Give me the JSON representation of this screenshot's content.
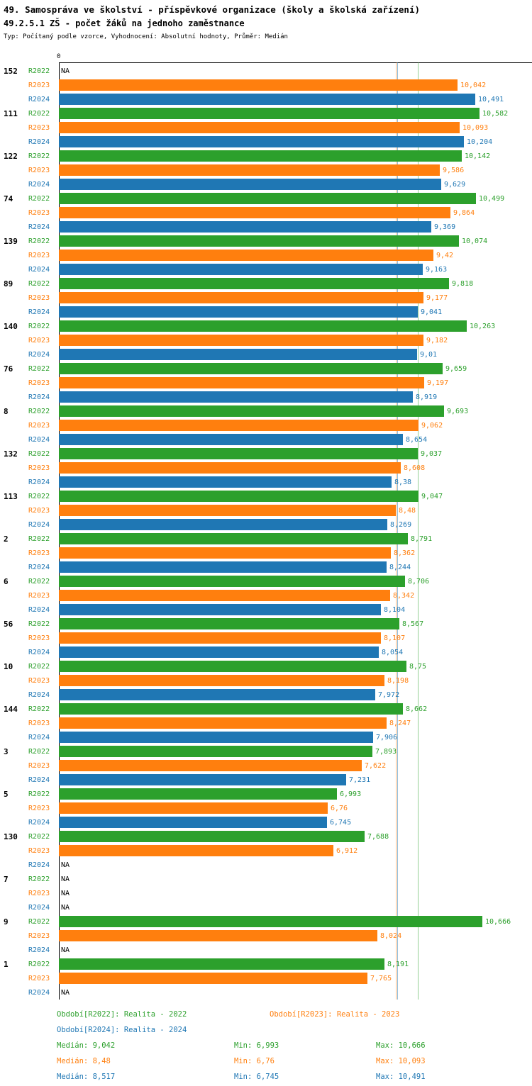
{
  "header": {
    "title": "49. Samospráva ve školství - příspěvkové organizace (školy a školská zařízení)",
    "subtitle": "49.2.5.1 ZŠ - počet žáků na jednoho zaměstnance",
    "meta": "Typ: Počítaný podle vzorce, Vyhodnocení: Absolutní hodnoty, Průměr: Medián"
  },
  "chart_data": {
    "type": "bar",
    "orientation": "horizontal",
    "title": "49.2.5.1 ZŠ - počet žáků na jednoho zaměstnance",
    "xlabel": "",
    "ylabel": "",
    "xlim": [
      0,
      11.9
    ],
    "grid": false,
    "axis": {
      "zero_label": "0"
    },
    "series": [
      {
        "name": "R2022",
        "color": "#2ca02c",
        "median": 9.042
      },
      {
        "name": "R2023",
        "color": "#ff7f0e",
        "median": 8.48
      },
      {
        "name": "R2024",
        "color": "#1f77b4",
        "median": 8.517
      }
    ],
    "categories": [
      "152",
      "111",
      "122",
      "74",
      "139",
      "89",
      "140",
      "76",
      "8",
      "132",
      "113",
      "2",
      "6",
      "56",
      "10",
      "144",
      "3",
      "5",
      "130",
      "7",
      "9",
      "1"
    ],
    "groups": [
      {
        "label": "152",
        "bars": [
          {
            "series": 0,
            "display": "NA",
            "value": null
          },
          {
            "series": 1,
            "display": "10,042",
            "value": 10.042
          },
          {
            "series": 2,
            "display": "10,491",
            "value": 10.491
          }
        ]
      },
      {
        "label": "111",
        "bars": [
          {
            "series": 0,
            "display": "10,582",
            "value": 10.582
          },
          {
            "series": 1,
            "display": "10,093",
            "value": 10.093
          },
          {
            "series": 2,
            "display": "10,204",
            "value": 10.204
          }
        ]
      },
      {
        "label": "122",
        "bars": [
          {
            "series": 0,
            "display": "10,142",
            "value": 10.142
          },
          {
            "series": 1,
            "display": "9,586",
            "value": 9.586
          },
          {
            "series": 2,
            "display": "9,629",
            "value": 9.629
          }
        ]
      },
      {
        "label": "74",
        "bars": [
          {
            "series": 0,
            "display": "10,499",
            "value": 10.499
          },
          {
            "series": 1,
            "display": "9,864",
            "value": 9.864
          },
          {
            "series": 2,
            "display": "9,369",
            "value": 9.369
          }
        ]
      },
      {
        "label": "139",
        "bars": [
          {
            "series": 0,
            "display": "10,074",
            "value": 10.074
          },
          {
            "series": 1,
            "display": "9,42",
            "value": 9.42
          },
          {
            "series": 2,
            "display": "9,163",
            "value": 9.163
          }
        ]
      },
      {
        "label": "89",
        "bars": [
          {
            "series": 0,
            "display": "9,818",
            "value": 9.818
          },
          {
            "series": 1,
            "display": "9,177",
            "value": 9.177
          },
          {
            "series": 2,
            "display": "9,041",
            "value": 9.041
          }
        ]
      },
      {
        "label": "140",
        "bars": [
          {
            "series": 0,
            "display": "10,263",
            "value": 10.263
          },
          {
            "series": 1,
            "display": "9,182",
            "value": 9.182
          },
          {
            "series": 2,
            "display": "9,01",
            "value": 9.01
          }
        ]
      },
      {
        "label": "76",
        "bars": [
          {
            "series": 0,
            "display": "9,659",
            "value": 9.659
          },
          {
            "series": 1,
            "display": "9,197",
            "value": 9.197
          },
          {
            "series": 2,
            "display": "8,919",
            "value": 8.919
          }
        ]
      },
      {
        "label": "8",
        "bars": [
          {
            "series": 0,
            "display": "9,693",
            "value": 9.693
          },
          {
            "series": 1,
            "display": "9,062",
            "value": 9.062
          },
          {
            "series": 2,
            "display": "8,654",
            "value": 8.654
          }
        ]
      },
      {
        "label": "132",
        "bars": [
          {
            "series": 0,
            "display": "9,037",
            "value": 9.037
          },
          {
            "series": 1,
            "display": "8,608",
            "value": 8.608
          },
          {
            "series": 2,
            "display": "8,38",
            "value": 8.38
          }
        ]
      },
      {
        "label": "113",
        "bars": [
          {
            "series": 0,
            "display": "9,047",
            "value": 9.047
          },
          {
            "series": 1,
            "display": "8,48",
            "value": 8.48
          },
          {
            "series": 2,
            "display": "8,269",
            "value": 8.269
          }
        ]
      },
      {
        "label": "2",
        "bars": [
          {
            "series": 0,
            "display": "8,791",
            "value": 8.791
          },
          {
            "series": 1,
            "display": "8,362",
            "value": 8.362
          },
          {
            "series": 2,
            "display": "8,244",
            "value": 8.244
          }
        ]
      },
      {
        "label": "6",
        "bars": [
          {
            "series": 0,
            "display": "8,706",
            "value": 8.706
          },
          {
            "series": 1,
            "display": "8,342",
            "value": 8.342
          },
          {
            "series": 2,
            "display": "8,104",
            "value": 8.104
          }
        ]
      },
      {
        "label": "56",
        "bars": [
          {
            "series": 0,
            "display": "8,567",
            "value": 8.567
          },
          {
            "series": 1,
            "display": "8,107",
            "value": 8.107
          },
          {
            "series": 2,
            "display": "8,054",
            "value": 8.054
          }
        ]
      },
      {
        "label": "10",
        "bars": [
          {
            "series": 0,
            "display": "8,75",
            "value": 8.75
          },
          {
            "series": 1,
            "display": "8,198",
            "value": 8.198
          },
          {
            "series": 2,
            "display": "7,972",
            "value": 7.972
          }
        ]
      },
      {
        "label": "144",
        "bars": [
          {
            "series": 0,
            "display": "8,662",
            "value": 8.662
          },
          {
            "series": 1,
            "display": "8,247",
            "value": 8.247
          },
          {
            "series": 2,
            "display": "7,906",
            "value": 7.906
          }
        ]
      },
      {
        "label": "3",
        "bars": [
          {
            "series": 0,
            "display": "7,893",
            "value": 7.893
          },
          {
            "series": 1,
            "display": "7,622",
            "value": 7.622
          },
          {
            "series": 2,
            "display": "7,231",
            "value": 7.231
          }
        ]
      },
      {
        "label": "5",
        "bars": [
          {
            "series": 0,
            "display": "6,993",
            "value": 6.993
          },
          {
            "series": 1,
            "display": "6,76",
            "value": 6.76
          },
          {
            "series": 2,
            "display": "6,745",
            "value": 6.745
          }
        ]
      },
      {
        "label": "130",
        "bars": [
          {
            "series": 0,
            "display": "7,688",
            "value": 7.688
          },
          {
            "series": 1,
            "display": "6,912",
            "value": 6.912
          },
          {
            "series": 2,
            "display": "NA",
            "value": null
          }
        ]
      },
      {
        "label": "7",
        "bars": [
          {
            "series": 0,
            "display": "NA",
            "value": null
          },
          {
            "series": 1,
            "display": "NA",
            "value": null
          },
          {
            "series": 2,
            "display": "NA",
            "value": null
          }
        ]
      },
      {
        "label": "9",
        "bars": [
          {
            "series": 0,
            "display": "10,666",
            "value": 10.666
          },
          {
            "series": 1,
            "display": "8,024",
            "value": 8.024
          },
          {
            "series": 2,
            "display": "NA",
            "value": null
          }
        ]
      },
      {
        "label": "1",
        "bars": [
          {
            "series": 0,
            "display": "8,191",
            "value": 8.191
          },
          {
            "series": 1,
            "display": "7,765",
            "value": 7.765
          },
          {
            "series": 2,
            "display": "NA",
            "value": null
          }
        ]
      }
    ]
  },
  "legend": {
    "period_rows": [
      [
        {
          "series": 0,
          "text": "Období[R2022]: Realita - 2022"
        },
        {
          "series": 1,
          "text": "Období[R2023]: Realita - 2023"
        }
      ],
      [
        {
          "series": 2,
          "text": "Období[R2024]: Realita - 2024"
        }
      ]
    ],
    "stats": [
      {
        "series": 0,
        "median": "Medián: 9,042",
        "min": "Min: 6,993",
        "max": "Max: 10,666"
      },
      {
        "series": 1,
        "median": "Medián: 8,48",
        "min": "Min: 6,76",
        "max": "Max: 10,093"
      },
      {
        "series": 2,
        "median": "Medián: 8,517",
        "min": "Min: 6,745",
        "max": "Max: 10,491"
      }
    ]
  }
}
